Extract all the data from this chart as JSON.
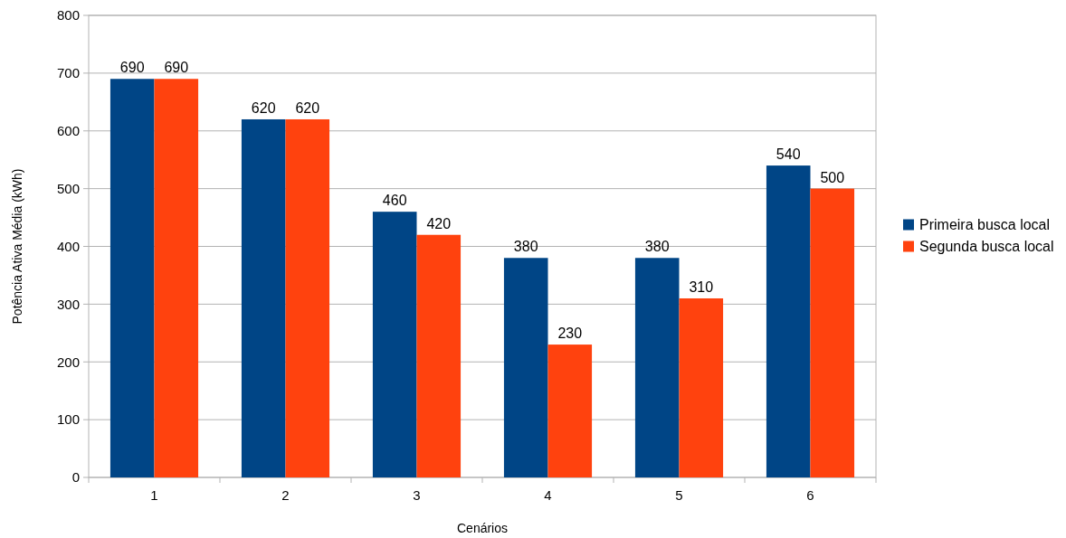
{
  "chart_data": {
    "type": "bar",
    "xlabel": "Cenários",
    "ylabel": "Potência Ativa Média (kWh)",
    "categories": [
      "1",
      "2",
      "3",
      "4",
      "5",
      "6"
    ],
    "series": [
      {
        "name": "Primeira busca local",
        "color": "#004586",
        "values": [
          690,
          620,
          460,
          380,
          380,
          540
        ]
      },
      {
        "name": "Segunda busca local",
        "color": "#ff420e",
        "values": [
          690,
          620,
          420,
          230,
          310,
          500
        ]
      }
    ],
    "ylim": [
      0,
      800
    ],
    "yticks": [
      0,
      100,
      200,
      300,
      400,
      500,
      600,
      700,
      800
    ],
    "grid": "y",
    "legend": "right",
    "data_labels": true
  }
}
